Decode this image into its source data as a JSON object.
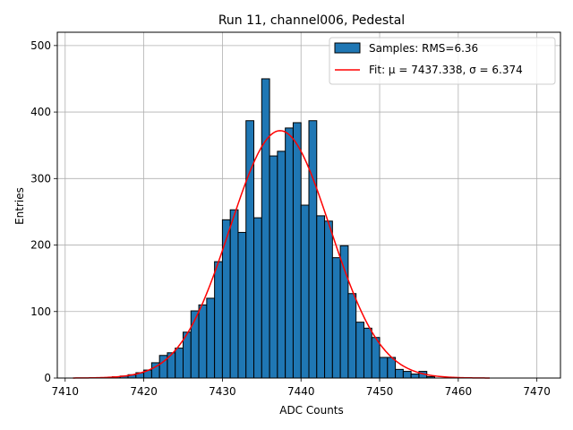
{
  "chart_data": {
    "type": "bar",
    "title": "Run 11, channel006, Pedestal",
    "xlabel": "ADC Counts",
    "ylabel": "Entries",
    "xlim": [
      7409.0,
      7473.0
    ],
    "ylim": [
      0,
      520
    ],
    "xticks": [
      7410,
      7420,
      7430,
      7440,
      7450,
      7460,
      7470
    ],
    "yticks": [
      0,
      100,
      200,
      300,
      400,
      500
    ],
    "grid": true,
    "legend_position": "upper-right",
    "bin_width": 1,
    "histogram": {
      "name": "Samples: RMS=6.36",
      "color": "#1f77b4",
      "edgecolor": "#000000",
      "bin_starts": [
        7411,
        7412,
        7413,
        7414,
        7415,
        7416,
        7417,
        7418,
        7419,
        7420,
        7421,
        7422,
        7423,
        7424,
        7425,
        7426,
        7427,
        7428,
        7429,
        7430,
        7431,
        7432,
        7433,
        7434,
        7435,
        7436,
        7437,
        7438,
        7439,
        7440,
        7441,
        7442,
        7443,
        7444,
        7445,
        7446,
        7447,
        7448,
        7449,
        7450,
        7451,
        7452,
        7453,
        7454,
        7455,
        7456,
        7457,
        7458,
        7459,
        7460,
        7461,
        7462,
        7463
      ],
      "counts": [
        0,
        0,
        0,
        0,
        0,
        2,
        3,
        5,
        8,
        12,
        23,
        34,
        38,
        45,
        69,
        101,
        110,
        120,
        175,
        238,
        253,
        219,
        387,
        241,
        450,
        334,
        341,
        376,
        384,
        260,
        387,
        244,
        236,
        181,
        199,
        127,
        84,
        75,
        61,
        31,
        31,
        13,
        10,
        6,
        10,
        2,
        0,
        0,
        0,
        0,
        0,
        0,
        0
      ]
    },
    "fit": {
      "name": "Fit: μ = 7437.338, σ = 6.374",
      "color": "#ff0000",
      "mu": 7437.338,
      "sigma": 6.374,
      "amplitude": 372,
      "x_range": [
        7411,
        7464
      ]
    }
  }
}
